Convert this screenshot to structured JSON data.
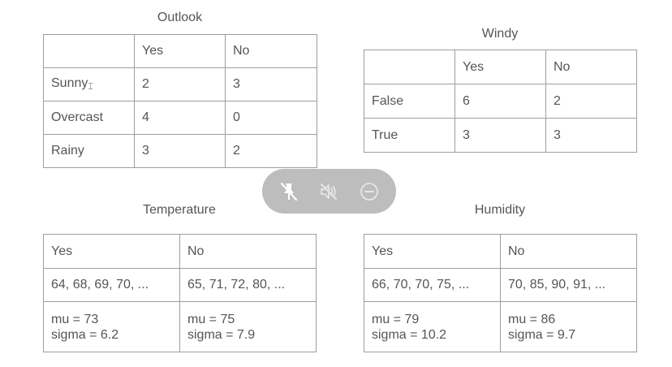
{
  "outlook": {
    "title": "Outlook",
    "header": [
      "",
      "Yes",
      "No"
    ],
    "rows": [
      [
        "Sunny",
        "2",
        "3"
      ],
      [
        "Overcast",
        "4",
        "0"
      ],
      [
        "Rainy",
        "3",
        "2"
      ]
    ]
  },
  "windy": {
    "title": "Windy",
    "header": [
      "",
      "Yes",
      "No"
    ],
    "rows": [
      [
        "False",
        "6",
        "2"
      ],
      [
        "True",
        "3",
        "3"
      ]
    ]
  },
  "temperature": {
    "title": "Temperature",
    "header": [
      "Yes",
      "No"
    ],
    "values": [
      "64, 68, 69, 70, ...",
      "65, 71, 72, 80, ..."
    ],
    "mu": [
      "mu = 73",
      "mu = 75"
    ],
    "sigma": [
      "sigma = 6.2",
      "sigma = 7.9"
    ]
  },
  "humidity": {
    "title": "Humidity",
    "header": [
      "Yes",
      "No"
    ],
    "values": [
      "66, 70, 70, 75, ...",
      "70, 85, 90, 91, ..."
    ],
    "mu": [
      "mu = 79",
      "mu = 86"
    ],
    "sigma": [
      "sigma = 10.2",
      "sigma = 9.7"
    ]
  },
  "overlay": {
    "icons": [
      "pin-off-icon",
      "mute-icon",
      "minus-circle-icon"
    ],
    "color": "#bdbdbd"
  }
}
